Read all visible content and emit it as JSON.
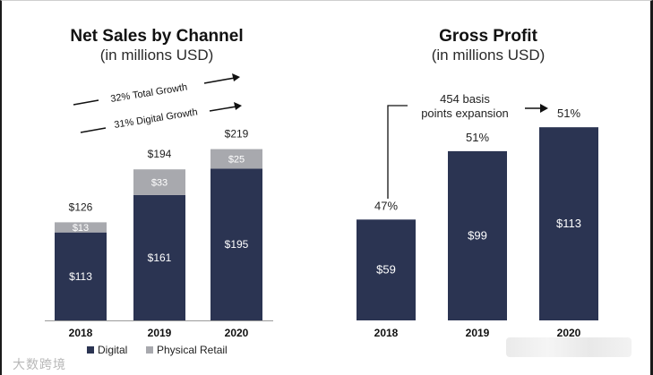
{
  "chart_data": [
    {
      "type": "bar",
      "stacked": true,
      "title": "Net Sales by Channel",
      "subtitle": "(in millions USD)",
      "categories": [
        "2018",
        "2019",
        "2020"
      ],
      "series": [
        {
          "name": "Digital",
          "values": [
            113,
            161,
            195
          ],
          "labels": [
            "$113",
            "$161",
            "$195"
          ],
          "color": "#2b3452"
        },
        {
          "name": "Physical Retail",
          "values": [
            13,
            33,
            25
          ],
          "labels": [
            "$13",
            "$33",
            "$25"
          ],
          "color": "#a8a9ae"
        }
      ],
      "totals": [
        "$126",
        "$194",
        "$219"
      ],
      "ylim": [
        0,
        240
      ],
      "annotations": [
        "32% Total Growth",
        "31% Digital Growth"
      ],
      "legend": [
        "Digital",
        "Physical Retail"
      ]
    },
    {
      "type": "bar",
      "title": "Gross Profit",
      "subtitle": "(in millions USD)",
      "categories": [
        "2018",
        "2019",
        "2020"
      ],
      "values": [
        59,
        99,
        113
      ],
      "value_labels": [
        "$59",
        "$99",
        "$113"
      ],
      "margin_labels": [
        "47%",
        "51%",
        "51%"
      ],
      "color": "#2b3452",
      "ylim": [
        0,
        130
      ],
      "annotation": "454 basis\npoints expansion"
    }
  ],
  "watermark": "大数跨境"
}
